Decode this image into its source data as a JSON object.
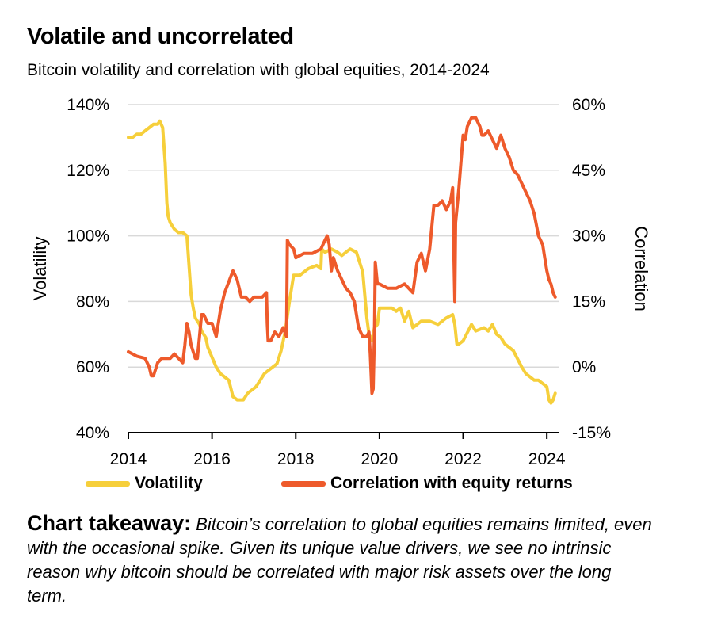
{
  "title": "Volatile and uncorrelated",
  "subtitle": "Bitcoin volatility and correlation with global equities, 2014-2024",
  "takeaway": {
    "label": "Chart takeaway:",
    "text": " Bitcoin’s correlation to global equities remains limited, even with the occasional spike. Given its unique value drivers, we see no intrinsic reason why bitcoin should be correlated with major risk assets over the long term."
  },
  "colors": {
    "volatility": "#f6cf3b",
    "correlation": "#ee5a2b",
    "grid": "#d9d9d9"
  },
  "chart_data": {
    "type": "line",
    "x_ticks": [
      "2014",
      "2016",
      "2018",
      "2020",
      "2022",
      "2024"
    ],
    "xlim": [
      2014,
      2024.3
    ],
    "left_axis": {
      "label": "Volatility",
      "ylim": [
        40,
        140
      ],
      "ticks": [
        "40%",
        "60%",
        "80%",
        "100%",
        "120%",
        "140%"
      ]
    },
    "right_axis": {
      "label": "Correlation",
      "ylim": [
        -15,
        60
      ],
      "ticks": [
        "-15%",
        "0%",
        "15%",
        "30%",
        "45%",
        "60%"
      ]
    },
    "grid": true,
    "legend_position": "bottom",
    "series": [
      {
        "name": "Volatility",
        "axis": "left",
        "x": [
          2014.0,
          2014.1,
          2014.2,
          2014.3,
          2014.4,
          2014.5,
          2014.6,
          2014.7,
          2014.75,
          2014.82,
          2014.88,
          2014.92,
          2014.95,
          2015.0,
          2015.1,
          2015.2,
          2015.3,
          2015.4,
          2015.5,
          2015.55,
          2015.6,
          2015.7,
          2015.75,
          2015.85,
          2015.9,
          2016.0,
          2016.1,
          2016.2,
          2016.4,
          2016.5,
          2016.6,
          2016.75,
          2016.85,
          2016.95,
          2017.05,
          2017.15,
          2017.25,
          2017.35,
          2017.45,
          2017.55,
          2017.65,
          2017.75,
          2017.85,
          2017.95,
          2018.1,
          2018.3,
          2018.5,
          2018.6,
          2018.62,
          2018.7,
          2018.85,
          2019.0,
          2019.1,
          2019.2,
          2019.3,
          2019.45,
          2019.6,
          2019.7,
          2019.75,
          2019.82,
          2019.88,
          2019.95,
          2020.0,
          2020.1,
          2020.3,
          2020.4,
          2020.5,
          2020.6,
          2020.7,
          2020.8,
          2020.9,
          2021.0,
          2021.2,
          2021.4,
          2021.6,
          2021.75,
          2021.8,
          2021.85,
          2021.9,
          2022.0,
          2022.2,
          2022.3,
          2022.5,
          2022.6,
          2022.7,
          2022.8,
          2022.9,
          2023.0,
          2023.2,
          2023.4,
          2023.5,
          2023.6,
          2023.7,
          2023.8,
          2023.9,
          2024.0,
          2024.05,
          2024.1,
          2024.15,
          2024.2
        ],
        "values": [
          130,
          130,
          131,
          131,
          132,
          133,
          134,
          134,
          135,
          133,
          122,
          110,
          106,
          104,
          102,
          101,
          101,
          100,
          82,
          78,
          75,
          73,
          71,
          69,
          66,
          63,
          60,
          58,
          56,
          51,
          50,
          50,
          52,
          53,
          54,
          56,
          58,
          59,
          60,
          61,
          65,
          71,
          80,
          88,
          88,
          90,
          91,
          90,
          96,
          95,
          96,
          95,
          94,
          95,
          96,
          95,
          89,
          75,
          70,
          68,
          72,
          73,
          78,
          78,
          78,
          77,
          78,
          74,
          77,
          72,
          73,
          74,
          74,
          73,
          75,
          76,
          73,
          67,
          67,
          68,
          73,
          71,
          72,
          71,
          73,
          70,
          69,
          67,
          65,
          60,
          58,
          57,
          56,
          56,
          55,
          54,
          50,
          49,
          50,
          52
        ]
      },
      {
        "name": "Correlation with equity returns",
        "axis": "right",
        "x": [
          2014.0,
          2014.2,
          2014.4,
          2014.5,
          2014.55,
          2014.6,
          2014.7,
          2014.8,
          2015.0,
          2015.1,
          2015.2,
          2015.3,
          2015.35,
          2015.4,
          2015.45,
          2015.5,
          2015.6,
          2015.65,
          2015.7,
          2015.75,
          2015.8,
          2015.9,
          2016.0,
          2016.1,
          2016.2,
          2016.3,
          2016.5,
          2016.6,
          2016.7,
          2016.8,
          2016.9,
          2017.0,
          2017.1,
          2017.2,
          2017.3,
          2017.32,
          2017.34,
          2017.4,
          2017.5,
          2017.6,
          2017.7,
          2017.78,
          2017.8,
          2017.85,
          2017.95,
          2018.0,
          2018.2,
          2018.4,
          2018.6,
          2018.7,
          2018.75,
          2018.8,
          2018.85,
          2018.9,
          2019.0,
          2019.1,
          2019.2,
          2019.3,
          2019.4,
          2019.5,
          2019.6,
          2019.7,
          2019.75,
          2019.78,
          2019.82,
          2019.85,
          2019.88,
          2019.9,
          2019.95,
          2020.0,
          2020.2,
          2020.4,
          2020.6,
          2020.8,
          2020.9,
          2021.0,
          2021.1,
          2021.2,
          2021.3,
          2021.4,
          2021.5,
          2021.6,
          2021.7,
          2021.75,
          2021.8,
          2021.82,
          2021.85,
          2021.9,
          2022.0,
          2022.05,
          2022.1,
          2022.2,
          2022.3,
          2022.4,
          2022.45,
          2022.5,
          2022.6,
          2022.7,
          2022.8,
          2022.9,
          2023.0,
          2023.1,
          2023.2,
          2023.3,
          2023.4,
          2023.5,
          2023.6,
          2023.7,
          2023.8,
          2023.9,
          2023.95,
          2024.0,
          2024.05,
          2024.1,
          2024.15,
          2024.2
        ],
        "values": [
          3.5,
          2.5,
          2,
          0,
          -2,
          -2,
          1,
          2,
          2,
          3,
          2,
          1,
          5,
          10,
          8,
          5,
          2,
          2,
          7,
          12,
          12,
          10,
          10,
          7,
          13,
          17,
          22,
          20,
          16,
          16,
          15,
          16,
          16,
          16,
          17,
          10,
          6,
          6,
          8,
          7,
          9,
          7,
          29,
          28,
          27,
          25,
          26,
          26,
          27,
          29,
          30,
          28,
          22,
          25,
          22,
          20,
          18,
          17,
          15,
          9,
          7,
          7,
          8,
          3,
          -6,
          -5,
          8,
          24,
          19,
          19,
          18,
          18,
          19,
          17,
          24,
          26,
          22,
          27,
          37,
          37,
          38,
          36,
          38,
          41,
          15,
          33,
          36,
          41,
          53,
          52,
          55,
          57,
          57,
          55,
          53,
          53,
          54,
          52,
          50,
          53,
          50,
          48,
          45,
          44,
          42,
          40,
          38,
          35,
          30,
          28,
          25,
          22,
          20,
          19,
          17,
          16
        ]
      }
    ]
  }
}
